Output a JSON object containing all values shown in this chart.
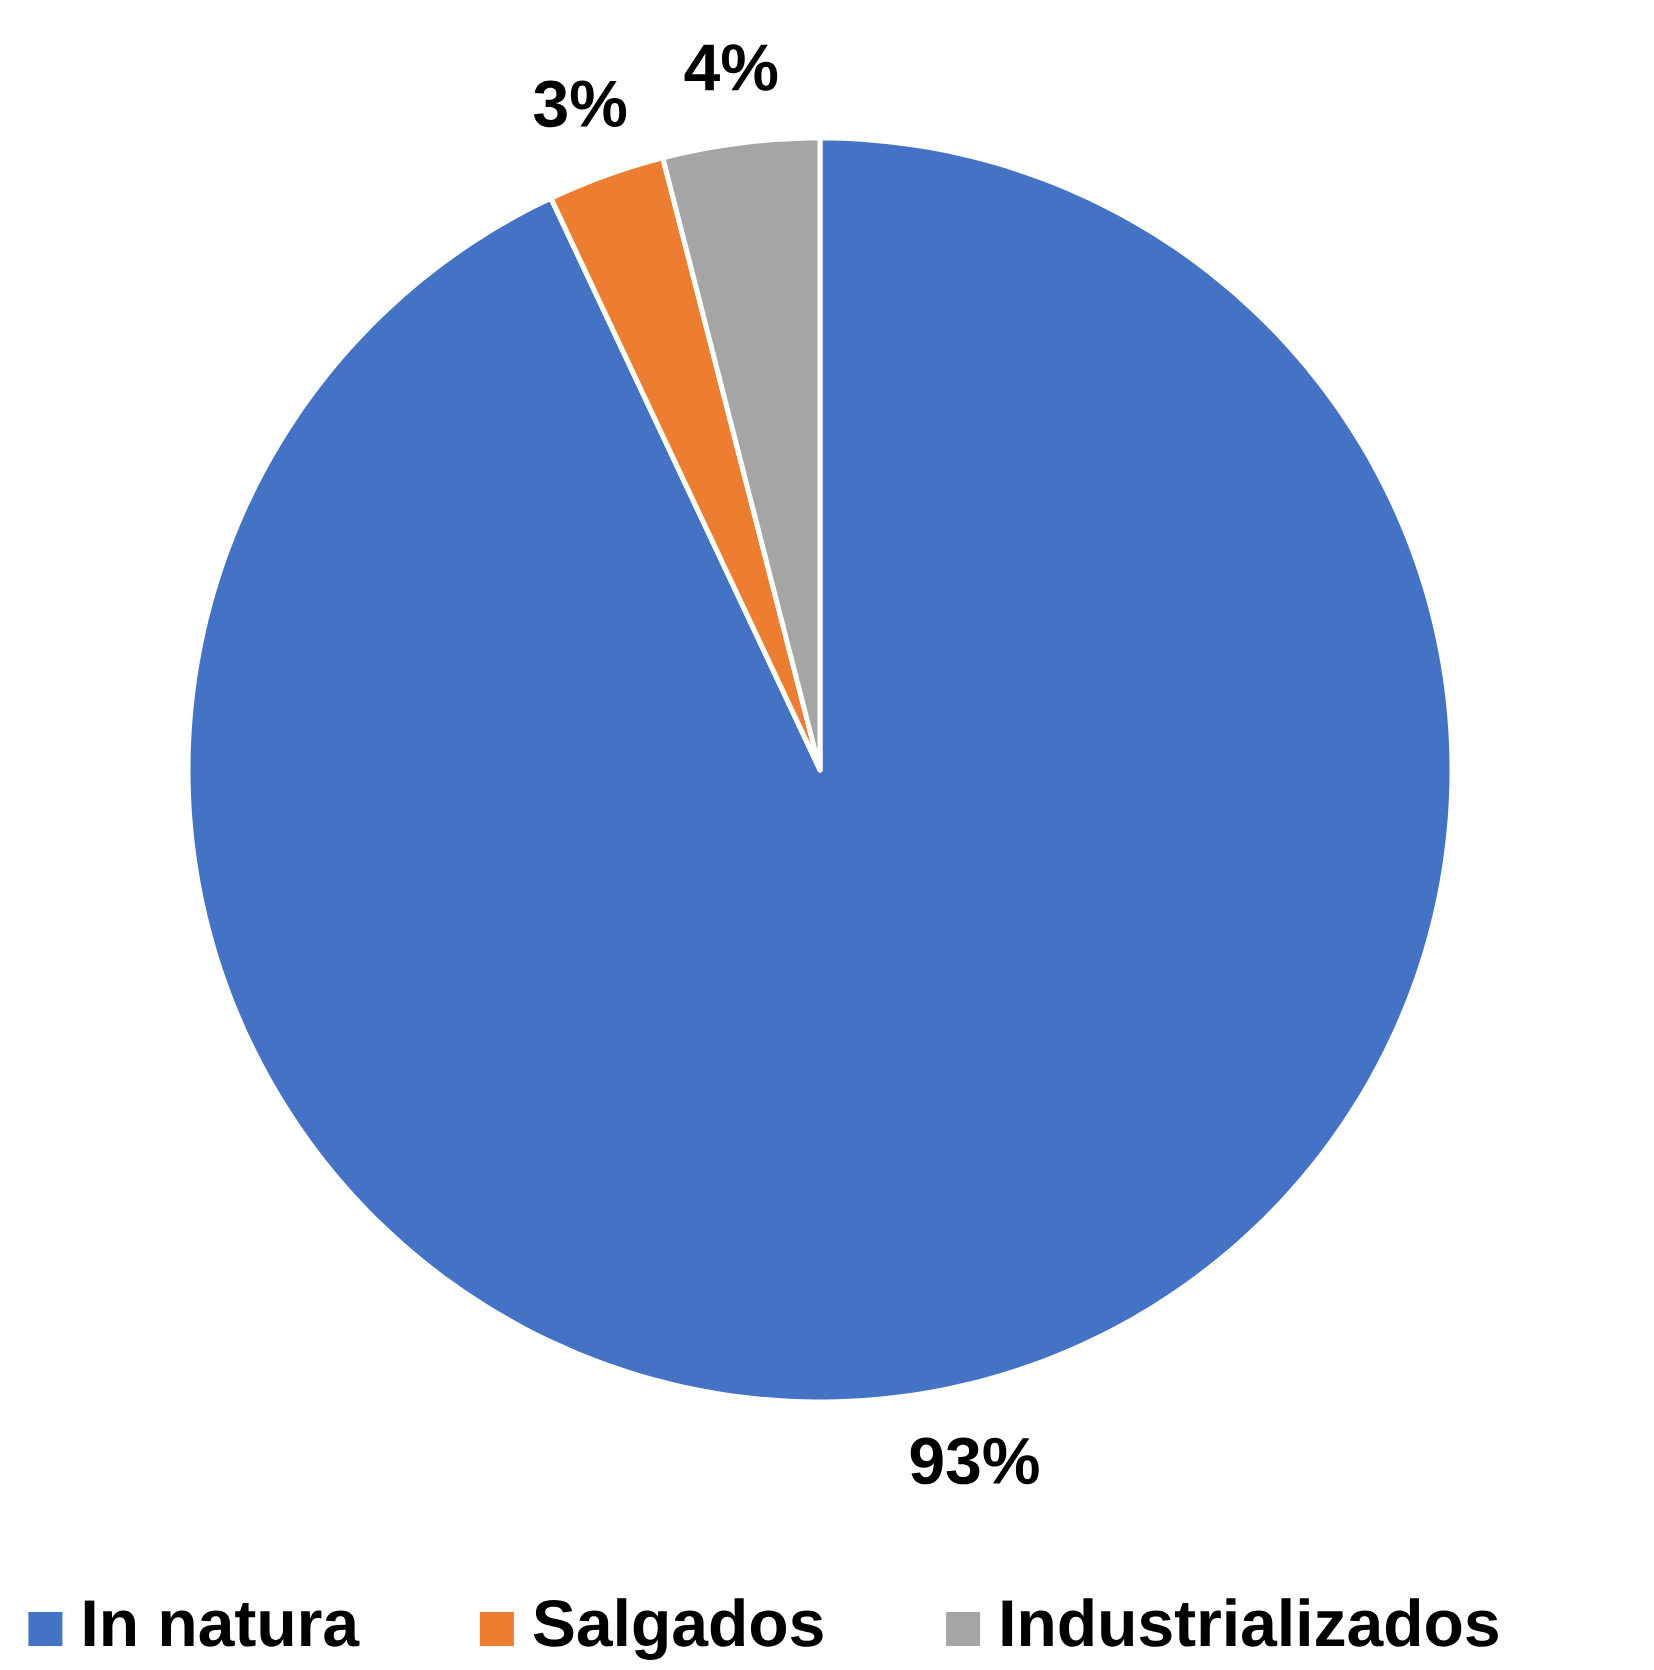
{
  "chart_data": {
    "type": "pie",
    "categories": [
      "In natura",
      "Salgados",
      "Industrializados"
    ],
    "values": [
      93,
      3,
      4
    ],
    "colors": [
      "#4472c4",
      "#ed7d31",
      "#a5a5a5"
    ],
    "value_labels": [
      "93%",
      "3%",
      "4%"
    ],
    "legend": "bottom"
  }
}
